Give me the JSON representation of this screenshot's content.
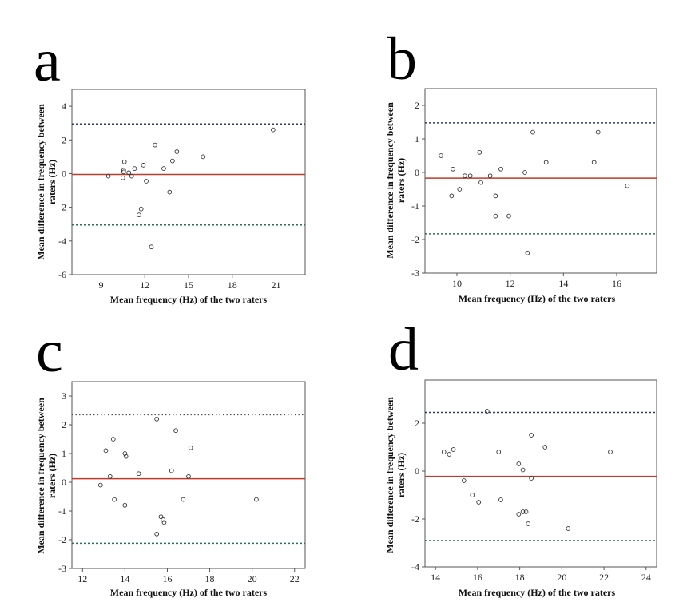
{
  "chart_data": [
    {
      "type": "scatter",
      "panel_label": "a",
      "xlabel": "Mean frequency (Hz) of the two raters",
      "ylabel": "Mean difference in frequency between raters (Hz)",
      "xlim": [
        7,
        23
      ],
      "ylim": [
        -6,
        5
      ],
      "xticks": [
        9,
        12,
        15,
        18,
        21
      ],
      "yticks": [
        -6,
        -4,
        -2,
        0,
        2,
        4
      ],
      "mean_line": -0.05,
      "upper_loa": 2.95,
      "lower_loa": -3.05,
      "points": [
        [
          9.5,
          -0.15
        ],
        [
          10.5,
          -0.25
        ],
        [
          10.55,
          0.2
        ],
        [
          10.6,
          0.7
        ],
        [
          10.55,
          0.1
        ],
        [
          10.9,
          0.05
        ],
        [
          11.1,
          -0.15
        ],
        [
          11.3,
          0.3
        ],
        [
          11.6,
          -2.45
        ],
        [
          11.75,
          -2.1
        ],
        [
          11.9,
          0.5
        ],
        [
          12.1,
          -0.45
        ],
        [
          12.45,
          -4.35
        ],
        [
          12.7,
          1.7
        ],
        [
          13.3,
          0.3
        ],
        [
          13.7,
          -1.1
        ],
        [
          13.9,
          0.75
        ],
        [
          14.2,
          1.3
        ],
        [
          16.0,
          1.0
        ],
        [
          20.8,
          2.6
        ]
      ],
      "colors": {
        "mean": "#c0392b",
        "upper": "#2f3b6b",
        "lower": "#2e6e57"
      }
    },
    {
      "type": "scatter",
      "panel_label": "b",
      "xlabel": "Mean frequency (Hz) of the two raters",
      "ylabel": "Mean difference in frequency between raters (Hz)",
      "xlim": [
        8.8,
        17.5
      ],
      "ylim": [
        -3,
        2.5
      ],
      "xticks": [
        10,
        12,
        14,
        16
      ],
      "yticks": [
        -3,
        -2,
        -1,
        0,
        1,
        2
      ],
      "mean_line": -0.17,
      "upper_loa": 1.48,
      "lower_loa": -1.83,
      "points": [
        [
          9.4,
          0.5
        ],
        [
          9.8,
          -0.7
        ],
        [
          9.85,
          0.1
        ],
        [
          10.1,
          -0.5
        ],
        [
          10.3,
          -0.1
        ],
        [
          10.5,
          -0.1
        ],
        [
          10.85,
          0.6
        ],
        [
          10.9,
          -0.3
        ],
        [
          11.25,
          -0.1
        ],
        [
          11.45,
          -1.3
        ],
        [
          11.45,
          -0.7
        ],
        [
          11.65,
          0.1
        ],
        [
          11.95,
          -1.3
        ],
        [
          12.55,
          0.0
        ],
        [
          12.65,
          -2.4
        ],
        [
          12.85,
          1.2
        ],
        [
          13.35,
          0.3
        ],
        [
          15.15,
          0.3
        ],
        [
          15.3,
          1.2
        ],
        [
          16.4,
          -0.4
        ]
      ],
      "colors": {
        "mean": "#c0392b",
        "upper": "#2f3b6b",
        "lower": "#2e6e57"
      }
    },
    {
      "type": "scatter",
      "panel_label": "c",
      "xlabel": "Mean frequency (Hz) of the two raters",
      "ylabel": "Mean difference in frequency between raters (Hz)",
      "xlim": [
        11.5,
        22.5
      ],
      "ylim": [
        -3,
        3.5
      ],
      "xticks": [
        12,
        14,
        16,
        18,
        20,
        22
      ],
      "yticks": [
        -3,
        -2,
        -1,
        0,
        1,
        2,
        3
      ],
      "mean_line": 0.12,
      "upper_loa": 2.35,
      "lower_loa": -2.12,
      "points": [
        [
          12.85,
          -0.1
        ],
        [
          13.1,
          1.1
        ],
        [
          13.3,
          0.2
        ],
        [
          13.45,
          1.5
        ],
        [
          13.5,
          -0.6
        ],
        [
          14.0,
          1.0
        ],
        [
          14.05,
          0.9
        ],
        [
          14.0,
          -0.8
        ],
        [
          14.65,
          0.3
        ],
        [
          15.5,
          2.2
        ],
        [
          15.5,
          -1.8
        ],
        [
          15.7,
          -1.2
        ],
        [
          15.8,
          -1.3
        ],
        [
          15.85,
          -1.4
        ],
        [
          16.2,
          0.4
        ],
        [
          16.4,
          1.8
        ],
        [
          16.75,
          -0.6
        ],
        [
          17.0,
          0.2
        ],
        [
          17.1,
          1.2
        ],
        [
          20.2,
          -0.6
        ]
      ],
      "colors": {
        "mean": "#c0392b",
        "upper": "#555555",
        "lower": "#2e6e57"
      }
    },
    {
      "type": "scatter",
      "panel_label": "d",
      "xlabel": "Mean frequency (Hz) of the two raters",
      "ylabel": "Mean difference in frequency between raters (Hz)",
      "xlim": [
        13.5,
        24.5
      ],
      "ylim": [
        -4,
        3.8
      ],
      "xticks": [
        14,
        16,
        18,
        20,
        22,
        24
      ],
      "yticks": [
        -4,
        -2,
        0,
        2
      ],
      "mean_line": -0.22,
      "upper_loa": 2.45,
      "lower_loa": -2.9,
      "points": [
        [
          14.4,
          0.8
        ],
        [
          14.65,
          0.7
        ],
        [
          14.85,
          0.9
        ],
        [
          15.35,
          -0.4
        ],
        [
          15.75,
          -1.0
        ],
        [
          16.05,
          -1.3
        ],
        [
          16.45,
          2.5
        ],
        [
          17.0,
          0.8
        ],
        [
          17.1,
          -1.2
        ],
        [
          17.95,
          0.3
        ],
        [
          17.95,
          -1.8
        ],
        [
          18.15,
          -1.7
        ],
        [
          18.15,
          0.05
        ],
        [
          18.3,
          -1.7
        ],
        [
          18.4,
          -2.2
        ],
        [
          18.55,
          1.5
        ],
        [
          18.55,
          -0.3
        ],
        [
          19.2,
          1.0
        ],
        [
          20.3,
          -2.4
        ],
        [
          22.3,
          0.8
        ]
      ],
      "colors": {
        "mean": "#c0392b",
        "upper": "#2f3b6b",
        "lower": "#2e6e57"
      }
    }
  ]
}
